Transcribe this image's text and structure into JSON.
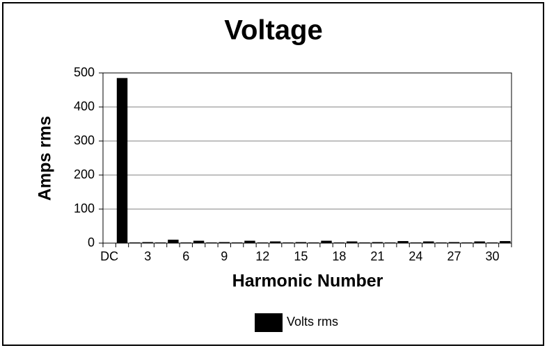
{
  "chart_data": {
    "type": "bar",
    "title": "Voltage",
    "x_label": "Harmonic Number",
    "y_label": "Amps rms",
    "categories": [
      "DC",
      null,
      null,
      "3",
      null,
      null,
      "6",
      null,
      null,
      "9",
      null,
      null,
      "12",
      null,
      null,
      "15",
      null,
      null,
      "18",
      null,
      null,
      "21",
      null,
      null,
      "24",
      null,
      null,
      "27",
      null,
      null,
      "30",
      null
    ],
    "series": [
      {
        "name": "Volts rms",
        "color": "#000000",
        "values": [
          1,
          485,
          2,
          3,
          2,
          10,
          2,
          7,
          2,
          3,
          2,
          7,
          2,
          5,
          2,
          3,
          2,
          7,
          2,
          5,
          2,
          3,
          2,
          6,
          2,
          5,
          2,
          3,
          2,
          5,
          2,
          6
        ]
      }
    ],
    "ylim": [
      0,
      500
    ],
    "yticks": [
      0,
      100,
      200,
      300,
      400,
      500
    ],
    "grid": true,
    "legend": "bottom"
  }
}
